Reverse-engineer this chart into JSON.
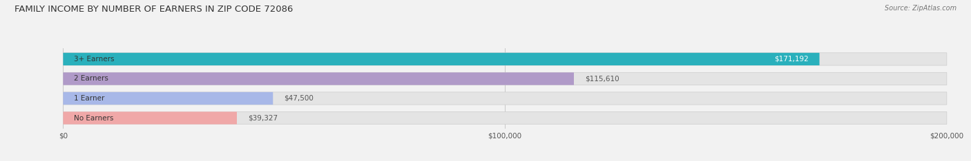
{
  "title": "FAMILY INCOME BY NUMBER OF EARNERS IN ZIP CODE 72086",
  "source": "Source: ZipAtlas.com",
  "categories": [
    "No Earners",
    "1 Earner",
    "2 Earners",
    "3+ Earners"
  ],
  "values": [
    39327,
    47500,
    115610,
    171192
  ],
  "bar_colors": [
    "#f0a8a8",
    "#a8b8e8",
    "#b09ac8",
    "#2ab0bc"
  ],
  "label_colors": [
    "#444444",
    "#444444",
    "#444444",
    "#ffffff"
  ],
  "value_labels": [
    "$39,327",
    "$47,500",
    "$115,610",
    "$171,192"
  ],
  "xlim": [
    0,
    200000
  ],
  "xticks": [
    0,
    100000,
    200000
  ],
  "xtick_labels": [
    "$0",
    "$100,000",
    "$200,000"
  ],
  "background_color": "#f2f2f2",
  "bar_background": "#e4e4e4",
  "bar_height": 0.62,
  "title_fontsize": 9.5,
  "source_fontsize": 7,
  "label_fontsize": 7.5,
  "value_fontsize": 7.5
}
